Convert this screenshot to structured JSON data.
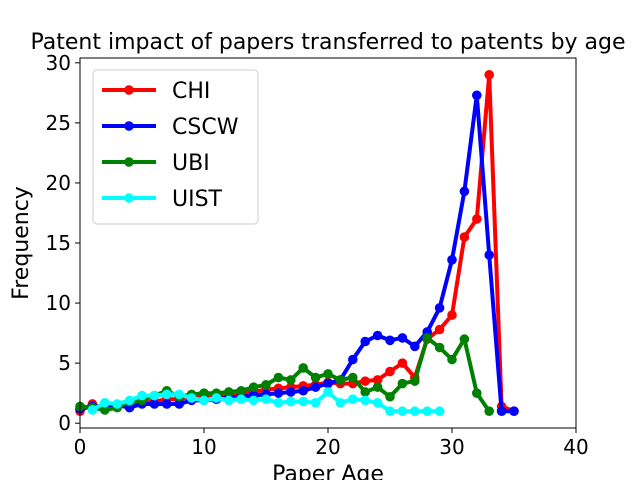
{
  "chart_data": {
    "type": "line",
    "title": "Patent impact of papers transferred to patents by age",
    "xlabel": "Paper Age",
    "ylabel": "Frequency",
    "xlim": [
      0,
      40
    ],
    "ylim": [
      -0.4,
      30.4
    ],
    "xticks": [
      0,
      10,
      20,
      30,
      40
    ],
    "yticks": [
      0,
      5,
      10,
      15,
      20,
      25,
      30
    ],
    "grid": false,
    "legend_position": "top-left",
    "series": [
      {
        "name": "CHI",
        "color": "#ff0000",
        "x": [
          0,
          1,
          2,
          3,
          4,
          5,
          6,
          7,
          8,
          9,
          10,
          11,
          12,
          13,
          14,
          15,
          16,
          17,
          18,
          19,
          20,
          21,
          22,
          23,
          24,
          25,
          26,
          27,
          28,
          29,
          30,
          31,
          32,
          33,
          34,
          35
        ],
        "y": [
          1.0,
          1.6,
          1.2,
          1.5,
          1.5,
          1.7,
          1.8,
          2.0,
          2.0,
          2.2,
          2.2,
          2.3,
          2.4,
          2.5,
          2.6,
          2.8,
          2.9,
          3.0,
          3.1,
          3.2,
          3.4,
          3.3,
          3.3,
          3.5,
          3.6,
          4.3,
          5.0,
          3.8,
          7.0,
          7.8,
          9.0,
          15.5,
          17.0,
          29.0,
          1.4,
          1.0
        ]
      },
      {
        "name": "CSCW",
        "color": "#0000ff",
        "x": [
          0,
          1,
          2,
          3,
          4,
          5,
          6,
          7,
          8,
          9,
          10,
          11,
          12,
          13,
          14,
          15,
          16,
          17,
          18,
          19,
          20,
          21,
          22,
          23,
          24,
          25,
          26,
          27,
          28,
          29,
          30,
          31,
          32,
          33,
          34,
          35
        ],
        "y": [
          1.2,
          1.4,
          1.3,
          1.5,
          1.3,
          1.6,
          1.6,
          1.6,
          1.6,
          1.9,
          1.9,
          2.0,
          2.1,
          2.2,
          2.3,
          2.4,
          2.5,
          2.6,
          2.7,
          3.0,
          3.3,
          3.6,
          5.3,
          6.8,
          7.3,
          6.9,
          7.1,
          6.4,
          7.6,
          9.6,
          13.6,
          19.3,
          27.3,
          14.0,
          1.0,
          1.0
        ]
      },
      {
        "name": "UBI",
        "color": "#008000",
        "x": [
          0,
          1,
          2,
          3,
          4,
          5,
          6,
          7,
          8,
          9,
          10,
          11,
          12,
          13,
          14,
          15,
          16,
          17,
          18,
          19,
          20,
          21,
          22,
          23,
          24,
          25,
          26,
          27,
          28,
          29,
          30,
          31,
          32,
          33
        ],
        "y": [
          1.4,
          1.3,
          1.1,
          1.3,
          1.8,
          1.9,
          2.3,
          2.7,
          2.2,
          2.4,
          2.5,
          2.5,
          2.6,
          2.7,
          3.0,
          3.2,
          3.8,
          3.6,
          4.6,
          3.8,
          4.1,
          3.6,
          3.8,
          2.6,
          3.0,
          2.2,
          3.3,
          3.5,
          7.1,
          6.3,
          5.3,
          7.0,
          2.5,
          1.0
        ]
      },
      {
        "name": "UIST",
        "color": "#00ffff",
        "x": [
          1,
          2,
          3,
          4,
          5,
          6,
          7,
          8,
          9,
          10,
          11,
          12,
          13,
          14,
          15,
          16,
          17,
          18,
          19,
          20,
          21,
          22,
          23,
          24,
          25,
          26,
          27,
          28,
          29
        ],
        "y": [
          1.1,
          1.7,
          1.6,
          1.9,
          2.3,
          2.3,
          2.4,
          2.4,
          2.1,
          1.9,
          2.1,
          1.9,
          2.0,
          1.9,
          2.0,
          1.7,
          1.8,
          1.8,
          1.7,
          2.6,
          1.7,
          2.0,
          1.9,
          1.7,
          1.0,
          1.0,
          1.0,
          1.0,
          1.0
        ]
      }
    ]
  }
}
